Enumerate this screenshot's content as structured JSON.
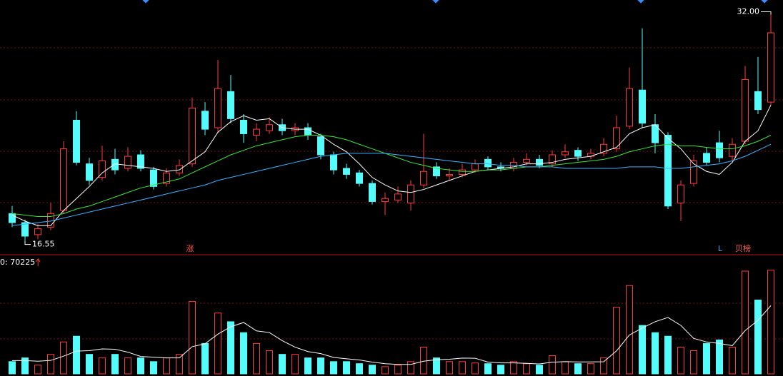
{
  "chart_data": [
    {
      "type": "candlestick",
      "open": [
        18.6,
        18.0,
        17.2,
        17.7,
        18.8,
        24.8,
        21.9,
        21.0,
        22.2,
        21.6,
        22.5,
        21.5,
        20.6,
        21.3,
        21.9,
        25.4,
        24.3,
        26.7,
        24.8,
        23.8,
        24.1,
        24.5,
        24.1,
        24.3,
        23.7,
        22.5,
        21.6,
        21.3,
        20.6,
        19.4,
        19.5,
        19.3,
        20.5,
        21.7,
        21.1,
        21.2,
        21.5,
        22.2,
        21.7,
        21.6,
        22.0,
        22.2,
        21.9,
        22.5,
        22.8,
        22.4,
        22.6,
        22.9,
        24.4,
        26.8,
        24.5,
        23.8,
        19.3,
        20.6,
        22.6,
        23.3,
        22.4,
        23.4,
        26.7,
        26.0
      ],
      "high": [
        19.1,
        18.2,
        17.9,
        19.3,
        23.4,
        25.4,
        22.3,
        23.1,
        22.9,
        23.0,
        22.8,
        21.7,
        21.6,
        22.2,
        26.3,
        26.0,
        28.8,
        27.8,
        25.2,
        24.6,
        25.0,
        24.9,
        24.6,
        24.6,
        23.9,
        22.7,
        21.9,
        21.5,
        20.8,
        20.0,
        20.4,
        20.8,
        23.9,
        22.0,
        21.6,
        21.9,
        22.2,
        22.4,
        22.0,
        22.3,
        22.6,
        22.5,
        22.8,
        23.2,
        23.0,
        22.9,
        23.6,
        25.1,
        28.3,
        30.9,
        25.2,
        24.0,
        20.8,
        22.5,
        23.0,
        24.1,
        23.6,
        28.4,
        29.0,
        32.0
      ],
      "low": [
        17.7,
        16.55,
        16.9,
        17.5,
        18.6,
        21.8,
        20.5,
        20.8,
        21.2,
        21.4,
        21.4,
        20.2,
        20.4,
        21.1,
        21.7,
        23.8,
        24.0,
        24.6,
        23.3,
        23.4,
        23.9,
        23.8,
        23.8,
        23.5,
        22.2,
        21.2,
        20.9,
        20.4,
        19.2,
        18.5,
        19.3,
        18.8,
        20.3,
        20.9,
        20.8,
        21.0,
        21.3,
        21.5,
        21.4,
        21.4,
        21.8,
        21.6,
        21.7,
        22.3,
        22.1,
        22.2,
        22.4,
        22.7,
        24.2,
        24.3,
        22.6,
        18.9,
        18.1,
        20.4,
        21.8,
        22.0,
        22.1,
        23.2,
        25.2,
        25.8
      ],
      "close": [
        18.0,
        17.1,
        17.6,
        18.6,
        22.9,
        22.0,
        20.8,
        22.1,
        21.5,
        22.4,
        21.6,
        20.4,
        21.3,
        21.8,
        25.6,
        24.2,
        26.9,
        24.9,
        23.9,
        24.2,
        24.5,
        24.1,
        24.3,
        23.8,
        22.5,
        21.5,
        21.2,
        20.6,
        19.4,
        19.6,
        19.9,
        20.5,
        21.4,
        21.1,
        21.2,
        21.5,
        21.9,
        21.7,
        21.6,
        22.0,
        22.2,
        21.8,
        22.5,
        22.7,
        22.4,
        22.6,
        23.2,
        24.3,
        26.9,
        24.6,
        23.3,
        19.1,
        20.5,
        22.1,
        22.0,
        22.3,
        23.2,
        27.5,
        25.5,
        30.6
      ],
      "up_color": "#ff3c3c",
      "down_color": "#54fcfc",
      "ylim": [
        16.2,
        32.4
      ],
      "lines": [
        {
          "color": "#ffffff",
          "values": [
            18.5,
            18.1,
            17.8,
            17.8,
            18.8,
            19.6,
            20.4,
            21.3,
            21.9,
            21.8,
            21.7,
            21.6,
            21.4,
            21.5,
            22.1,
            22.7,
            24.0,
            24.7,
            25.1,
            24.8,
            24.9,
            24.3,
            24.2,
            24.2,
            23.8,
            23.2,
            22.7,
            21.9,
            21.0,
            20.5,
            20.1,
            20.0,
            20.2,
            20.5,
            20.8,
            21.1,
            21.4,
            21.5,
            21.6,
            21.7,
            21.9,
            21.9,
            22.0,
            22.2,
            22.3,
            22.4,
            22.7,
            23.0,
            23.9,
            24.3,
            24.5,
            23.6,
            22.9,
            21.9,
            21.4,
            21.2,
            22.0,
            23.4,
            24.1,
            25.8
          ]
        },
        {
          "color": "#3ce63c",
          "values": [
            18.6,
            18.5,
            18.4,
            18.4,
            18.6,
            18.9,
            19.1,
            19.4,
            19.7,
            20.0,
            20.3,
            20.5,
            20.7,
            20.9,
            21.3,
            21.7,
            22.1,
            22.5,
            22.8,
            23.1,
            23.3,
            23.5,
            23.7,
            23.8,
            23.8,
            23.7,
            23.5,
            23.2,
            22.9,
            22.6,
            22.3,
            22.0,
            21.8,
            21.6,
            21.5,
            21.4,
            21.4,
            21.5,
            21.5,
            21.6,
            21.7,
            21.7,
            21.8,
            21.9,
            22.0,
            22.1,
            22.2,
            22.4,
            22.7,
            22.9,
            23.1,
            23.2,
            23.1,
            23.1,
            23.0,
            22.9,
            22.9,
            23.1,
            23.4,
            23.8
          ]
        },
        {
          "color": "#3cb4ff",
          "values": [
            17.8,
            17.9,
            18.0,
            18.1,
            18.3,
            18.5,
            18.7,
            18.9,
            19.1,
            19.3,
            19.5,
            19.7,
            19.9,
            20.1,
            20.3,
            20.5,
            20.8,
            21.0,
            21.2,
            21.4,
            21.6,
            21.8,
            22.0,
            22.2,
            22.4,
            22.5,
            22.6,
            22.6,
            22.6,
            22.6,
            22.5,
            22.4,
            22.3,
            22.2,
            22.1,
            22.0,
            21.9,
            21.9,
            21.8,
            21.8,
            21.7,
            21.7,
            21.7,
            21.6,
            21.6,
            21.6,
            21.6,
            21.6,
            21.7,
            21.7,
            21.7,
            21.6,
            21.6,
            21.7,
            21.8,
            21.9,
            22.1,
            22.4,
            22.8,
            23.2
          ]
        }
      ],
      "extremes": [
        {
          "value": 32,
          "label": "32.00"
        },
        {
          "value": 16.55,
          "label": "16.55"
        }
      ],
      "event_labels": [
        "涨",
        "L",
        "贝榜"
      ]
    },
    {
      "type": "volume",
      "title": "0: 70225",
      "values": [
        8300,
        10800,
        5900,
        13200,
        21600,
        25500,
        13200,
        10800,
        13200,
        10800,
        10800,
        8300,
        10800,
        13200,
        49000,
        20600,
        41200,
        35300,
        27900,
        20600,
        15700,
        13200,
        13200,
        10800,
        10800,
        8300,
        8300,
        6900,
        5900,
        4900,
        5900,
        8300,
        18100,
        10800,
        8300,
        8300,
        7400,
        6900,
        5900,
        8300,
        6900,
        5900,
        12300,
        8300,
        6900,
        6900,
        10800,
        45100,
        59800,
        32800,
        27900,
        25500,
        18100,
        15700,
        20600,
        23000,
        18100,
        69600,
        50000,
        70225
      ],
      "ylim": [
        0,
        72000
      ],
      "lines": [
        {
          "color": "#ffffff",
          "values": [
            9000,
            9000,
            8600,
            9100,
            12000,
            15400,
            15700,
            16900,
            16700,
            14700,
            11800,
            11300,
            10800,
            10800,
            18400,
            20400,
            26900,
            31900,
            34800,
            29100,
            28000,
            22500,
            18100,
            15100,
            13700,
            11100,
            10200,
            9400,
            8000,
            6900,
            6400,
            6400,
            8600,
            9600,
            9900,
            10700,
            10600,
            8000,
            7400,
            7400,
            7100,
            6700,
            7900,
            8300,
            8100,
            8100,
            8200,
            15600,
            26300,
            31100,
            35300,
            38200,
            32800,
            24000,
            21600,
            20600,
            19100,
            29300,
            36300,
            46200
          ]
        }
      ]
    }
  ]
}
